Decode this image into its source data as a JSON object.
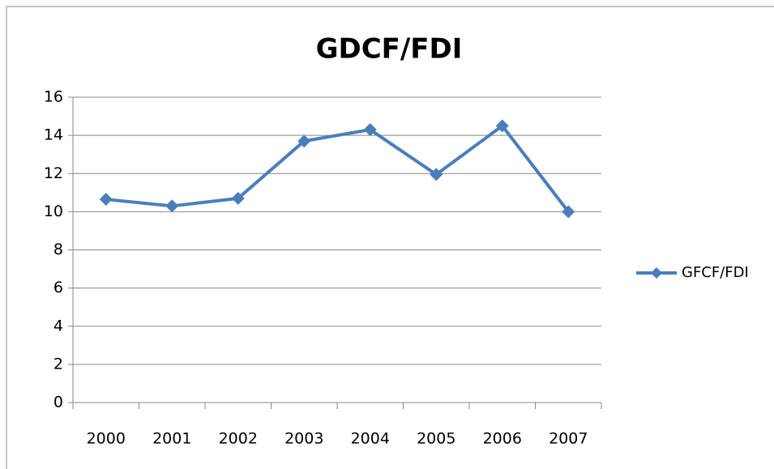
{
  "chart_data": {
    "type": "line",
    "title": "GDCF/FDI",
    "categories": [
      "2000",
      "2001",
      "2002",
      "2003",
      "2004",
      "2005",
      "2006",
      "2007"
    ],
    "series": [
      {
        "name": "GFCF/FDI",
        "color": "#4a7ebb",
        "values": [
          10.65,
          10.3,
          10.7,
          13.7,
          14.3,
          11.95,
          14.5,
          10.0
        ]
      }
    ],
    "ylim": [
      0,
      16
    ],
    "yticks": [
      0,
      2,
      4,
      6,
      8,
      10,
      12,
      14,
      16
    ],
    "grid": true,
    "legend": "right"
  }
}
